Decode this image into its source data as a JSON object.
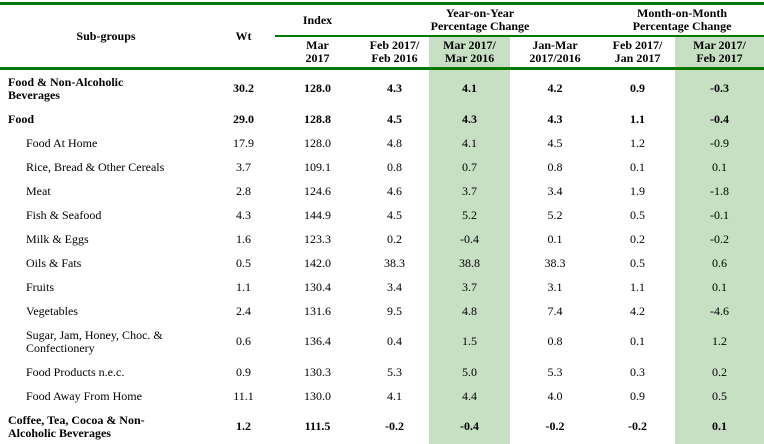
{
  "colors": {
    "border_green": "#047804",
    "highlight_green": "#c7e0c4",
    "text": "#000000",
    "background": "#ffffff"
  },
  "table": {
    "header": {
      "subgroups": "Sub-groups",
      "wt": "Wt",
      "index": "Index",
      "yoy_group": "Year-on-Year\nPercentage Change",
      "mom_group": "Month-on-Month\nPercentage Change",
      "index_sub": "Mar\n2017",
      "yoy_cols": [
        "Feb 2017/\nFeb 2016",
        "Mar 2017/\nMar 2016",
        "Jan-Mar\n2017/2016"
      ],
      "mom_cols": [
        "Feb 2017/\nJan 2017",
        "Mar 2017/\nFeb 2017"
      ],
      "highlighted_columns": [
        "Mar 2017/Mar 2016",
        "Mar 2017/Feb 2017"
      ]
    },
    "rows": [
      {
        "name": "Food & Non-Alcoholic\nBeverages",
        "bold": true,
        "indent": 0,
        "values": [
          "30.2",
          "128.0",
          "4.3",
          "4.1",
          "4.2",
          "0.9",
          "-0.3"
        ]
      },
      {
        "name": "Food",
        "bold": true,
        "indent": 0,
        "values": [
          "29.0",
          "128.8",
          "4.5",
          "4.3",
          "4.3",
          "1.1",
          "-0.4"
        ]
      },
      {
        "name": "Food At Home",
        "bold": false,
        "indent": 1,
        "values": [
          "17.9",
          "128.0",
          "4.8",
          "4.1",
          "4.5",
          "1.2",
          "-0.9"
        ]
      },
      {
        "name": "Rice, Bread & Other Cereals",
        "bold": false,
        "indent": 1,
        "values": [
          "3.7",
          "109.1",
          "0.8",
          "0.7",
          "0.8",
          "0.1",
          "0.1"
        ]
      },
      {
        "name": "Meat",
        "bold": false,
        "indent": 1,
        "values": [
          "2.8",
          "124.6",
          "4.6",
          "3.7",
          "3.4",
          "1.9",
          "-1.8"
        ]
      },
      {
        "name": "Fish & Seafood",
        "bold": false,
        "indent": 1,
        "values": [
          "4.3",
          "144.9",
          "4.5",
          "5.2",
          "5.2",
          "0.5",
          "-0.1"
        ]
      },
      {
        "name": "Milk & Eggs",
        "bold": false,
        "indent": 1,
        "values": [
          "1.6",
          "123.3",
          "0.2",
          "-0.4",
          "0.1",
          "0.2",
          "-0.2"
        ]
      },
      {
        "name": "Oils & Fats",
        "bold": false,
        "indent": 1,
        "values": [
          "0.5",
          "142.0",
          "38.3",
          "38.8",
          "38.3",
          "0.5",
          "0.6"
        ]
      },
      {
        "name": "Fruits",
        "bold": false,
        "indent": 1,
        "values": [
          "1.1",
          "130.4",
          "3.4",
          "3.7",
          "3.1",
          "1.1",
          "0.1"
        ]
      },
      {
        "name": "Vegetables",
        "bold": false,
        "indent": 1,
        "values": [
          "2.4",
          "131.6",
          "9.5",
          "4.8",
          "7.4",
          "4.2",
          "-4.6"
        ]
      },
      {
        "name": "Sugar, Jam, Honey, Choc. &\nConfectionery",
        "bold": false,
        "indent": 1,
        "values": [
          "0.6",
          "136.4",
          "0.4",
          "1.5",
          "0.8",
          "0.1",
          "1.2"
        ]
      },
      {
        "name": "Food Products n.e.c.",
        "bold": false,
        "indent": 1,
        "values": [
          "0.9",
          "130.3",
          "5.3",
          "5.0",
          "5.3",
          "0.3",
          "0.2"
        ]
      },
      {
        "name": "Food Away From Home",
        "bold": false,
        "indent": 1,
        "values": [
          "11.1",
          "130.0",
          "4.1",
          "4.4",
          "4.0",
          "0.9",
          "0.5"
        ]
      },
      {
        "name": "Coffee, Tea, Cocoa & Non-\nAlcoholic Beverages",
        "bold": true,
        "indent": 0,
        "values": [
          "1.2",
          "111.5",
          "-0.2",
          "-0.4",
          "-0.2",
          "-0.2",
          "0.1"
        ]
      }
    ]
  }
}
